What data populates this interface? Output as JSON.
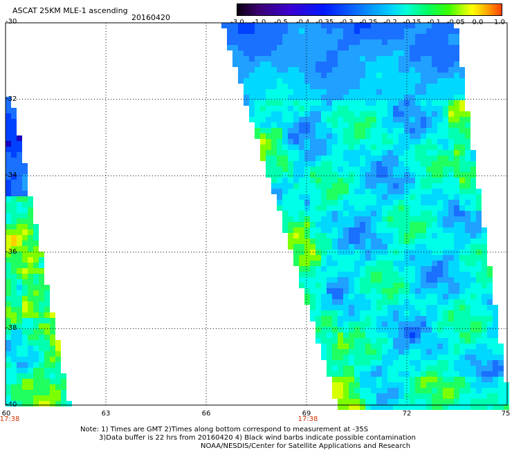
{
  "header": {
    "title": "ASCAT 25KM MLE-1 ascending",
    "date": "20160420"
  },
  "colorbar": {
    "ticks": [
      "-3.0",
      "-1.0",
      "-0.5",
      "-0.4",
      "-0.35",
      "-0.3",
      "-0.25",
      "-0.2",
      "-0.15",
      "-0.1",
      "-0.05",
      "0.0",
      "1.0"
    ]
  },
  "axes": {
    "lat_labels": [
      "-30",
      "-32",
      "-34",
      "-36",
      "-38",
      "-40"
    ],
    "lon_labels": [
      "60",
      "63",
      "66",
      "69",
      "72",
      "75"
    ],
    "pass_times": [
      "17:38",
      "17:38"
    ]
  },
  "notes": {
    "line1": "Note: 1) Times are GMT 2)Times along bottom correspond to measurement at -35S",
    "line2": "3)Data buffer is 22 hrs from 20160420 4) Black wind barbs indicate possible contamination",
    "line3": "NOAA/NESDIS/Center for Satellite Applications and Research"
  }
}
